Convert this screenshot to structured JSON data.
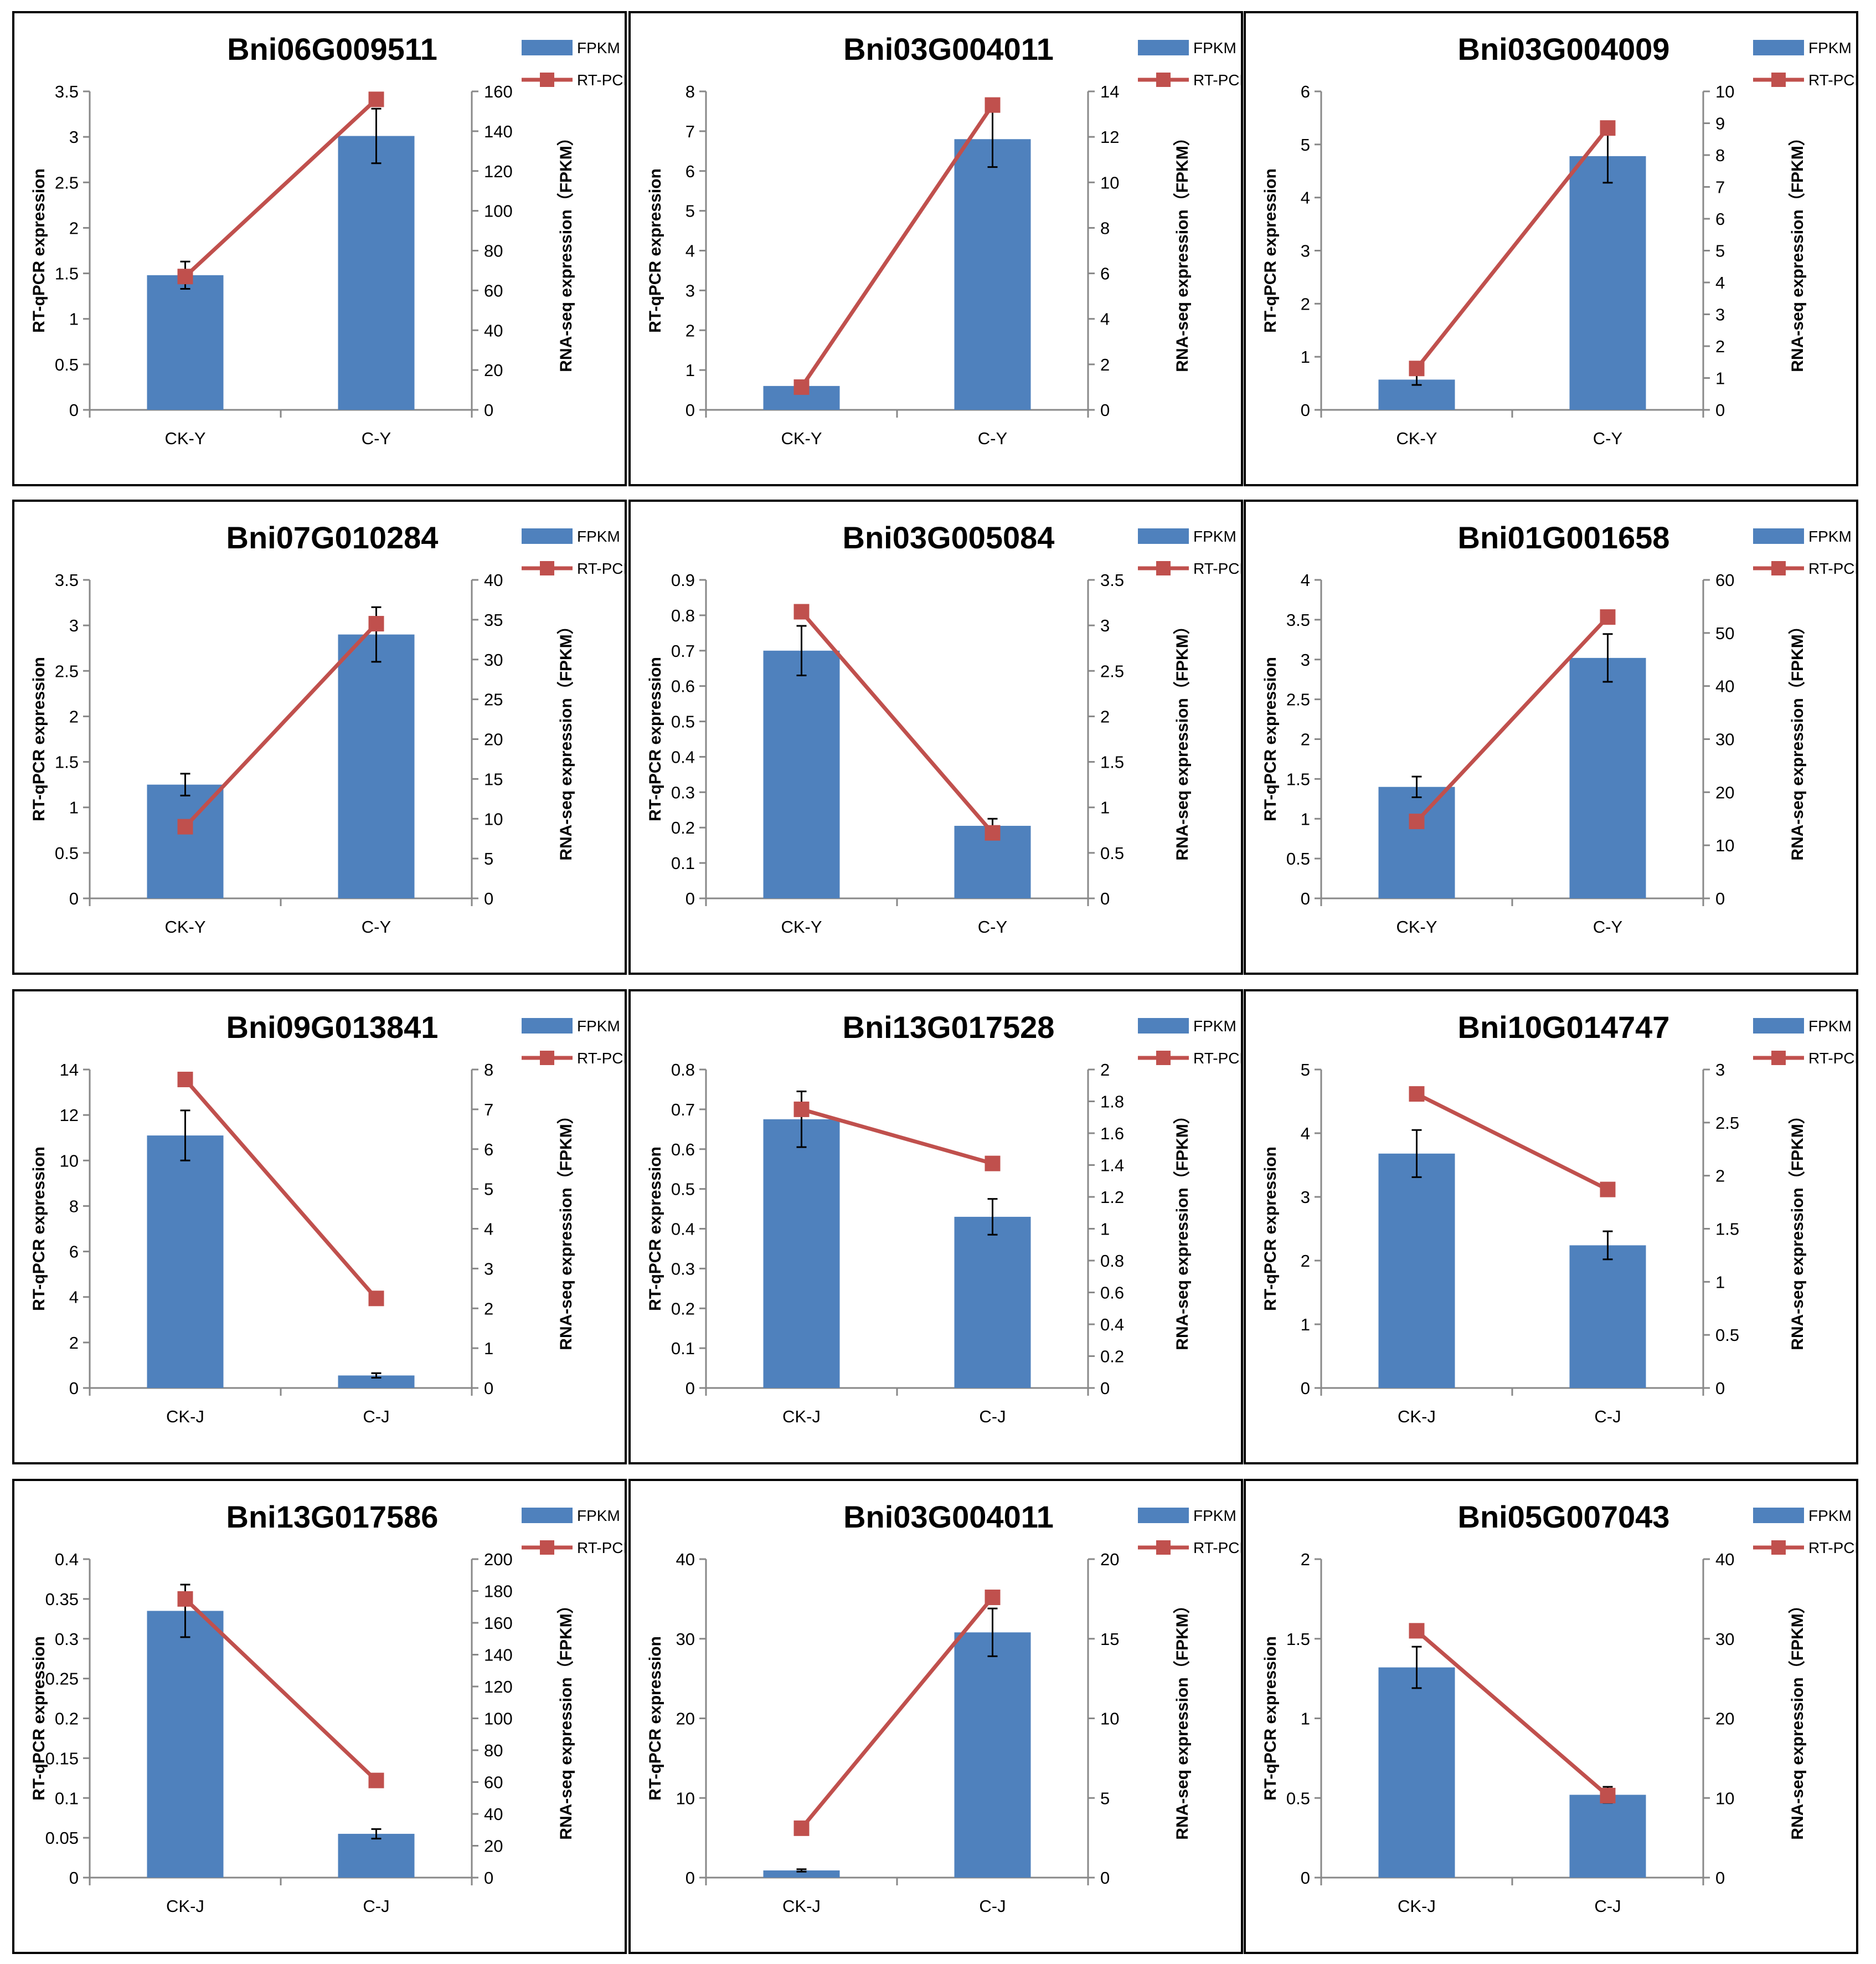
{
  "colors": {
    "bar": "#4f81bd",
    "line": "#c0504d",
    "axis": "#888888",
    "border": "#000000",
    "text": "#000000"
  },
  "legend": {
    "bar": "FPKM",
    "line": "RT-PCR"
  },
  "chart_data": [
    {
      "type": "bar+line",
      "title": "Bni06G009511",
      "categories": [
        "CK-Y",
        "C-Y"
      ],
      "ylabel": "RT-qPCR expression",
      "y2label": "RNA-seq expression（FPKM）",
      "ylim": [
        0,
        3.5
      ],
      "yticks": [
        "0",
        "0.5",
        "1",
        "1.5",
        "2",
        "2.5",
        "3",
        "3.5"
      ],
      "y2lim": [
        0,
        160
      ],
      "y2ticks": [
        "0",
        "20",
        "40",
        "60",
        "80",
        "100",
        "120",
        "140",
        "160"
      ],
      "series": [
        {
          "name": "FPKM",
          "axis": "left",
          "values": [
            1.48,
            3.01
          ],
          "errors": [
            0.15,
            0.3
          ]
        },
        {
          "name": "RT-PCR",
          "axis": "right",
          "values": [
            67,
            156
          ]
        }
      ]
    },
    {
      "type": "bar+line",
      "title": "Bni03G004011",
      "categories": [
        "CK-Y",
        "C-Y"
      ],
      "ylabel": "RT-qPCR expression",
      "y2label": "RNA-seq expression（FPKM）",
      "ylim": [
        0,
        8
      ],
      "yticks": [
        "0",
        "1",
        "2",
        "3",
        "4",
        "5",
        "6",
        "7",
        "8"
      ],
      "y2lim": [
        0,
        14
      ],
      "y2ticks": [
        "0",
        "2",
        "4",
        "6",
        "8",
        "10",
        "12",
        "14"
      ],
      "series": [
        {
          "name": "FPKM",
          "axis": "left",
          "values": [
            0.6,
            6.8
          ],
          "errors": [
            0.05,
            0.7
          ]
        },
        {
          "name": "RT-PCR",
          "axis": "right",
          "values": [
            1.0,
            13.4
          ]
        }
      ]
    },
    {
      "type": "bar+line",
      "title": "Bni03G004009",
      "categories": [
        "CK-Y",
        "C-Y"
      ],
      "ylabel": "RT-qPCR expression",
      "y2label": "RNA-seq expression（FPKM）",
      "ylim": [
        0,
        6
      ],
      "yticks": [
        "0",
        "1",
        "2",
        "3",
        "4",
        "5",
        "6"
      ],
      "y2lim": [
        0,
        10
      ],
      "y2ticks": [
        "0",
        "1",
        "2",
        "3",
        "4",
        "5",
        "6",
        "7",
        "8",
        "9",
        "10"
      ],
      "series": [
        {
          "name": "FPKM",
          "axis": "left",
          "values": [
            0.57,
            4.78
          ],
          "errors": [
            0.1,
            0.5
          ]
        },
        {
          "name": "RT-PCR",
          "axis": "right",
          "values": [
            1.3,
            8.85
          ]
        }
      ]
    },
    {
      "type": "bar+line",
      "title": "Bni07G010284",
      "categories": [
        "CK-Y",
        "C-Y"
      ],
      "ylabel": "RT-qPCR expression",
      "y2label": "RNA-seq expression（FPKM）",
      "ylim": [
        0,
        3.5
      ],
      "yticks": [
        "0",
        "0.5",
        "1",
        "1.5",
        "2",
        "2.5",
        "3",
        "3.5"
      ],
      "y2lim": [
        0,
        40
      ],
      "y2ticks": [
        "0",
        "5",
        "10",
        "15",
        "20",
        "25",
        "30",
        "35",
        "40"
      ],
      "series": [
        {
          "name": "FPKM",
          "axis": "left",
          "values": [
            1.25,
            2.9
          ],
          "errors": [
            0.12,
            0.3
          ]
        },
        {
          "name": "RT-PCR",
          "axis": "right",
          "values": [
            9,
            34.5
          ]
        }
      ]
    },
    {
      "type": "bar+line",
      "title": "Bni03G005084",
      "categories": [
        "CK-Y",
        "C-Y"
      ],
      "ylabel": "RT-qPCR expression",
      "y2label": "RNA-seq expression（FPKM）",
      "ylim": [
        0,
        0.9
      ],
      "yticks": [
        "0",
        "0.1",
        "0.2",
        "0.3",
        "0.4",
        "0.5",
        "0.6",
        "0.7",
        "0.8",
        "0.9"
      ],
      "y2lim": [
        0,
        3.5
      ],
      "y2ticks": [
        "0",
        "0.5",
        "1",
        "1.5",
        "2",
        "2.5",
        "3",
        "3.5"
      ],
      "series": [
        {
          "name": "FPKM",
          "axis": "left",
          "values": [
            0.7,
            0.205
          ],
          "errors": [
            0.07,
            0.02
          ]
        },
        {
          "name": "RT-PCR",
          "axis": "right",
          "values": [
            3.15,
            0.72
          ]
        }
      ]
    },
    {
      "type": "bar+line",
      "title": "Bni01G001658",
      "categories": [
        "CK-Y",
        "C-Y"
      ],
      "ylabel": "RT-qPCR expression",
      "y2label": "RNA-seq expression（FPKM）",
      "ylim": [
        0,
        4
      ],
      "yticks": [
        "0",
        "0.5",
        "1",
        "1.5",
        "2",
        "2.5",
        "3",
        "3.5",
        "4"
      ],
      "y2lim": [
        0,
        60
      ],
      "y2ticks": [
        "0",
        "10",
        "20",
        "30",
        "40",
        "50",
        "60"
      ],
      "series": [
        {
          "name": "FPKM",
          "axis": "left",
          "values": [
            1.4,
            3.02
          ],
          "errors": [
            0.13,
            0.3
          ]
        },
        {
          "name": "RT-PCR",
          "axis": "right",
          "values": [
            14.5,
            53
          ]
        }
      ]
    },
    {
      "type": "bar+line",
      "title": "Bni09G013841",
      "categories": [
        "CK-J",
        "C-J"
      ],
      "ylabel": "RT-qPCR expression",
      "y2label": "RNA-seq expression（FPKM）",
      "ylim": [
        0,
        14
      ],
      "yticks": [
        "0",
        "2",
        "4",
        "6",
        "8",
        "10",
        "12",
        "14"
      ],
      "y2lim": [
        0,
        8
      ],
      "y2ticks": [
        "0",
        "1",
        "2",
        "3",
        "4",
        "5",
        "6",
        "7",
        "8"
      ],
      "series": [
        {
          "name": "FPKM",
          "axis": "left",
          "values": [
            11.1,
            0.55
          ],
          "errors": [
            1.1,
            0.1
          ]
        },
        {
          "name": "RT-PCR",
          "axis": "right",
          "values": [
            7.75,
            2.25
          ]
        }
      ]
    },
    {
      "type": "bar+line",
      "title": "Bni13G017528",
      "categories": [
        "CK-J",
        "C-J"
      ],
      "ylabel": "RT-qPCR expression",
      "y2label": "RNA-seq expression（FPKM）",
      "ylim": [
        0,
        0.8
      ],
      "yticks": [
        "0",
        "0.1",
        "0.2",
        "0.3",
        "0.4",
        "0.5",
        "0.6",
        "0.7",
        "0.8"
      ],
      "y2lim": [
        0,
        2
      ],
      "y2ticks": [
        "0",
        "0.2",
        "0.4",
        "0.6",
        "0.8",
        "1",
        "1.2",
        "1.4",
        "1.6",
        "1.8",
        "2"
      ],
      "series": [
        {
          "name": "FPKM",
          "axis": "left",
          "values": [
            0.675,
            0.43
          ],
          "errors": [
            0.07,
            0.045
          ]
        },
        {
          "name": "RT-PCR",
          "axis": "right",
          "values": [
            1.75,
            1.41
          ]
        }
      ]
    },
    {
      "type": "bar+line",
      "title": "Bni10G014747",
      "categories": [
        "CK-J",
        "C-J"
      ],
      "ylabel": "RT-qPCR expression",
      "y2label": "RNA-seq expression（FPKM）",
      "ylim": [
        0,
        5
      ],
      "yticks": [
        "0",
        "1",
        "2",
        "3",
        "4",
        "5"
      ],
      "y2lim": [
        0,
        3
      ],
      "y2ticks": [
        "0",
        "0.5",
        "1",
        "1.5",
        "2",
        "2.5",
        "3"
      ],
      "series": [
        {
          "name": "FPKM",
          "axis": "left",
          "values": [
            3.68,
            2.24
          ],
          "errors": [
            0.37,
            0.22
          ]
        },
        {
          "name": "RT-PCR",
          "axis": "right",
          "values": [
            2.77,
            1.87
          ]
        }
      ]
    },
    {
      "type": "bar+line",
      "title": "Bni13G017586",
      "categories": [
        "CK-J",
        "C-J"
      ],
      "ylabel": "RT-qPCR expression",
      "y2label": "RNA-seq expression（FPKM）",
      "ylim": [
        0,
        0.4
      ],
      "yticks": [
        "0",
        "0.05",
        "0.1",
        "0.15",
        "0.2",
        "0.25",
        "0.3",
        "0.35",
        "0.4"
      ],
      "y2lim": [
        0,
        200
      ],
      "y2ticks": [
        "0",
        "20",
        "40",
        "60",
        "80",
        "100",
        "120",
        "140",
        "160",
        "180",
        "200"
      ],
      "series": [
        {
          "name": "FPKM",
          "axis": "left",
          "values": [
            0.335,
            0.055
          ],
          "errors": [
            0.033,
            0.006
          ]
        },
        {
          "name": "RT-PCR",
          "axis": "right",
          "values": [
            175,
            61
          ]
        }
      ]
    },
    {
      "type": "bar+line",
      "title": "Bni03G004011",
      "categories": [
        "CK-J",
        "C-J"
      ],
      "ylabel": "RT-qPCR expression",
      "y2label": "RNA-seq expression（FPKM）",
      "ylim": [
        0,
        40
      ],
      "yticks": [
        "0",
        "10",
        "20",
        "30",
        "40"
      ],
      "y2lim": [
        0,
        20
      ],
      "y2ticks": [
        "0",
        "5",
        "10",
        "15",
        "20"
      ],
      "series": [
        {
          "name": "FPKM",
          "axis": "left",
          "values": [
            0.9,
            30.8
          ],
          "errors": [
            0.15,
            3.0
          ]
        },
        {
          "name": "RT-PCR",
          "axis": "right",
          "values": [
            3.1,
            17.6
          ]
        }
      ]
    },
    {
      "type": "bar+line",
      "title": "Bni05G007043",
      "categories": [
        "CK-J",
        "C-J"
      ],
      "ylabel": "RT-qPCR expression",
      "y2label": "RNA-seq expression（FPKM）",
      "ylim": [
        0,
        2
      ],
      "yticks": [
        "0",
        "0.5",
        "1",
        "1.5",
        "2"
      ],
      "y2lim": [
        0,
        40
      ],
      "y2ticks": [
        "0",
        "10",
        "20",
        "30",
        "40"
      ],
      "series": [
        {
          "name": "FPKM",
          "axis": "left",
          "values": [
            1.32,
            0.52
          ],
          "errors": [
            0.13,
            0.05
          ]
        },
        {
          "name": "RT-PCR",
          "axis": "right",
          "values": [
            31,
            10.3
          ]
        }
      ]
    }
  ]
}
